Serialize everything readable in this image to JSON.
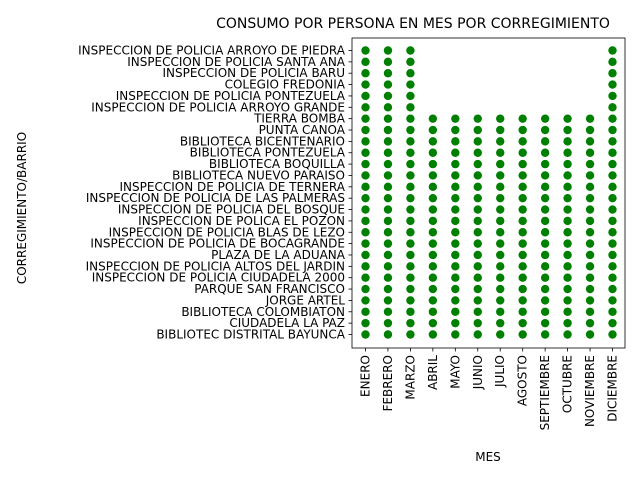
{
  "chart_data": {
    "type": "scatter",
    "title": "CONSUMO POR PERSONA EN MES POR CORREGIMIENTO",
    "xlabel": "MES",
    "ylabel": "CORREGIMIENTO/BARRIO",
    "marker_color": "#008000",
    "grid": false,
    "legend": "none",
    "x_categories": [
      "ENERO",
      "FEBRERO",
      "MARZO",
      "ABRIL",
      "MAYO",
      "JUNIO",
      "JULIO",
      "AGOSTO",
      "SEPTIEMBRE",
      "OCTUBRE",
      "NOVIEMBRE",
      "DICIEMBRE"
    ],
    "y_categories": [
      "BIBLIOTEC DISTRITAL BAYUNCA",
      "CIUDADELA LA PAZ",
      "BIBLIOTECA COLOMBIATON",
      "JORGE ARTEL",
      "PARQUE SAN FRANCISCO",
      "INSPECCION DE POLICIA CIUDADELA 2000",
      "INSPECCION DE POLICIA ALTOS DEL JARDIN",
      "PLAZA DE LA ADUANA",
      "INSPECCION DE POLICIA DE BOCAGRANDE",
      "INSPECCION DE POLICIA BLAS DE LEZO",
      "INSPECCION DE POLICA EL POZON",
      "INSPECCION DE POLICIA  DEL BOSQUE",
      "INSPECCION DE POLICIA DE LAS PALMERAS",
      "INSPECCION DE POLICIA DE TERNERA",
      "BIBLIOTECA NUEVO PARAISO",
      "BIBLIOTECA BOQUILLA",
      "BIBLIOTECA PONTEZUELA",
      "BIBLIOTECA BICENTENARIO",
      "PUNTA CANOA",
      "TIERRA BOMBA",
      "INSPECCION DE POLICIA ARROYO GRANDE",
      "INSPECCION DE POLICIA PONTEZUELA",
      "COLEGIO FREDONIA",
      "INSPECCION DE POLICIA BARU",
      "INSPECCION DE POLICIA SANTA ANA",
      "INSPECCION DE POLICIA ARROYO DE PIEDRA"
    ],
    "series": [
      {
        "x": "ENERO",
        "y_range": [
          0,
          25
        ]
      },
      {
        "x": "FEBRERO",
        "y_range": [
          0,
          25
        ]
      },
      {
        "x": "MARZO",
        "y_range": [
          0,
          25
        ]
      },
      {
        "x": "ABRIL",
        "y_range": [
          0,
          19
        ]
      },
      {
        "x": "MAYO",
        "y_range": [
          0,
          19
        ]
      },
      {
        "x": "JUNIO",
        "y_range": [
          0,
          19
        ]
      },
      {
        "x": "JULIO",
        "y_range": [
          0,
          19
        ]
      },
      {
        "x": "AGOSTO",
        "y_range": [
          0,
          19
        ]
      },
      {
        "x": "SEPTIEMBRE",
        "y_range": [
          0,
          19
        ]
      },
      {
        "x": "OCTUBRE",
        "y_range": [
          0,
          19
        ]
      },
      {
        "x": "NOVIEMBRE",
        "y_range": [
          0,
          19
        ]
      },
      {
        "x": "DICIEMBRE",
        "y_range": [
          0,
          25
        ]
      }
    ]
  }
}
